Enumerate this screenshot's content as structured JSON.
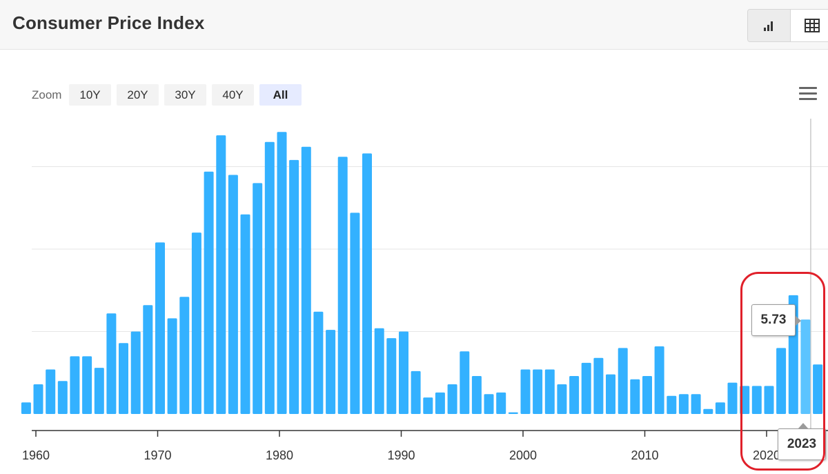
{
  "header": {
    "title": "Consumer Price Index",
    "chart_view_icon": "bar-chart-icon",
    "table_view_icon": "table-grid-icon"
  },
  "zoom": {
    "label": "Zoom",
    "options": [
      "10Y",
      "20Y",
      "30Y",
      "40Y",
      "All"
    ],
    "active": "All"
  },
  "menu_icon": "hamburger-menu-icon",
  "colors": {
    "bar": "#33b1ff",
    "bar_hover": "#5cc4ff",
    "grid": "#e6e6e6",
    "highlight": "#e0202a"
  },
  "tooltip": {
    "value": "5.73",
    "year": "2023"
  },
  "chart_data": {
    "type": "bar",
    "title": "Consumer Price Index",
    "xlabel": "",
    "ylabel": "",
    "x_ticks": [
      1960,
      1970,
      1980,
      1990,
      2000,
      2010,
      2020
    ],
    "x_tick_labels": [
      "1960",
      "1970",
      "1980",
      "1990",
      "2000",
      "2010",
      "2020"
    ],
    "ylim": [
      0,
      17.2
    ],
    "y_gridlines": [
      0,
      5,
      10,
      15
    ],
    "y_tick_labels_visible": false,
    "grid": true,
    "legend": "none",
    "highlighted_year": 2023,
    "highlighted_value": 5.73,
    "years": [
      1959,
      1960,
      1961,
      1962,
      1963,
      1964,
      1965,
      1966,
      1967,
      1968,
      1969,
      1970,
      1971,
      1972,
      1973,
      1974,
      1975,
      1976,
      1977,
      1978,
      1979,
      1980,
      1981,
      1982,
      1983,
      1984,
      1985,
      1986,
      1987,
      1988,
      1989,
      1990,
      1991,
      1992,
      1993,
      1994,
      1995,
      1996,
      1997,
      1998,
      1999,
      2000,
      2001,
      2002,
      2003,
      2004,
      2005,
      2006,
      2007,
      2008,
      2009,
      2010,
      2011,
      2012,
      2013,
      2014,
      2015,
      2016,
      2017,
      2018,
      2019,
      2020,
      2021,
      2022,
      2023,
      2024
    ],
    "values": [
      0.7,
      1.8,
      2.7,
      2.0,
      3.5,
      3.5,
      2.8,
      6.1,
      4.3,
      5.0,
      6.6,
      10.4,
      5.8,
      7.1,
      11.0,
      14.7,
      16.9,
      14.5,
      12.1,
      14.0,
      16.5,
      17.1,
      15.4,
      16.2,
      6.2,
      5.1,
      15.6,
      12.2,
      15.8,
      5.2,
      4.6,
      5.0,
      2.6,
      1.0,
      1.3,
      1.8,
      3.8,
      2.3,
      1.2,
      1.3,
      0.1,
      2.7,
      2.7,
      2.7,
      1.8,
      2.3,
      3.1,
      3.4,
      2.4,
      4.0,
      2.1,
      2.3,
      4.1,
      1.1,
      1.2,
      1.2,
      0.3,
      0.7,
      1.9,
      1.7,
      1.7,
      1.7,
      4.0,
      7.2,
      5.73,
      3.0
    ]
  }
}
